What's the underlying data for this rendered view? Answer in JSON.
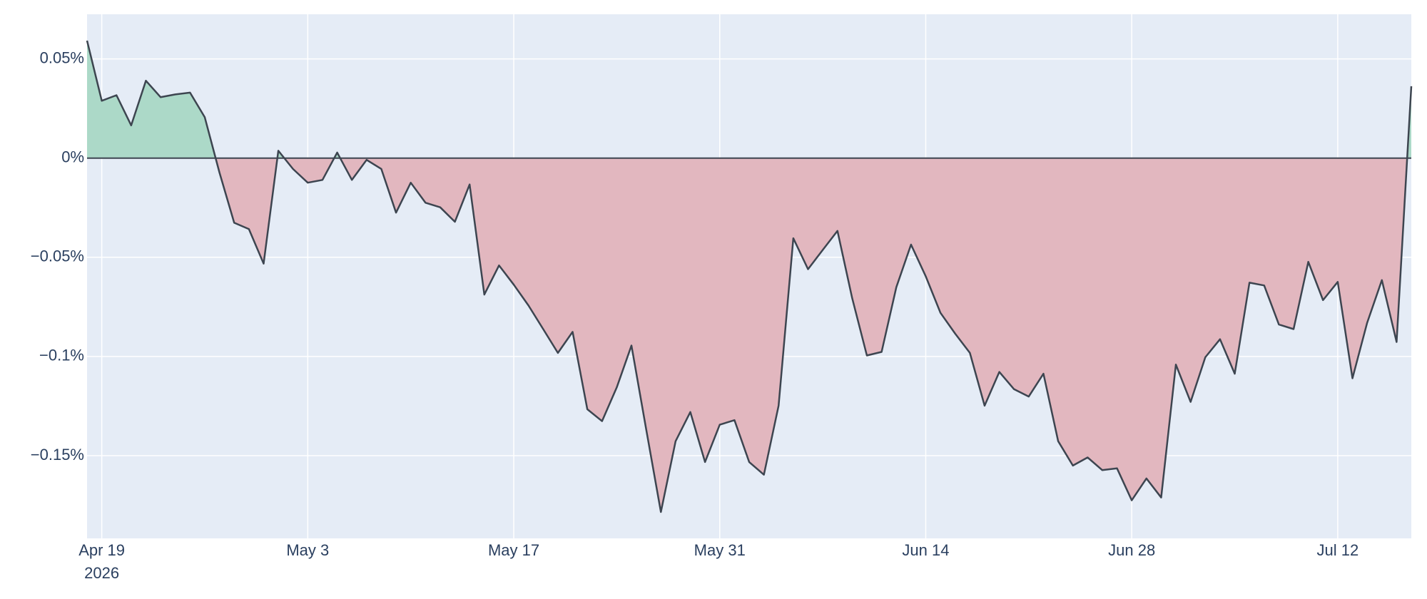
{
  "chart_data": {
    "type": "area",
    "x": [
      "2026-04-18",
      "2026-04-19",
      "2026-04-20",
      "2026-04-21",
      "2026-04-22",
      "2026-04-23",
      "2026-04-24",
      "2026-04-25",
      "2026-04-26",
      "2026-04-27",
      "2026-04-28",
      "2026-04-29",
      "2026-04-30",
      "2026-05-01",
      "2026-05-02",
      "2026-05-03",
      "2026-05-04",
      "2026-05-05",
      "2026-05-06",
      "2026-05-07",
      "2026-05-08",
      "2026-05-09",
      "2026-05-10",
      "2026-05-11",
      "2026-05-12",
      "2026-05-13",
      "2026-05-14",
      "2026-05-15",
      "2026-05-16",
      "2026-05-17",
      "2026-05-18",
      "2026-05-19",
      "2026-05-20",
      "2026-05-21",
      "2026-05-22",
      "2026-05-23",
      "2026-05-24",
      "2026-05-25",
      "2026-05-26",
      "2026-05-27",
      "2026-05-28",
      "2026-05-29",
      "2026-05-30",
      "2026-05-31",
      "2026-06-01",
      "2026-06-02",
      "2026-06-03",
      "2026-06-04",
      "2026-06-05",
      "2026-06-06",
      "2026-06-07",
      "2026-06-08",
      "2026-06-09",
      "2026-06-10",
      "2026-06-11",
      "2026-06-12",
      "2026-06-13",
      "2026-06-14",
      "2026-06-15",
      "2026-06-16",
      "2026-06-17",
      "2026-06-18",
      "2026-06-19",
      "2026-06-20",
      "2026-06-21",
      "2026-06-22",
      "2026-06-23",
      "2026-06-24",
      "2026-06-25",
      "2026-06-26",
      "2026-06-27",
      "2026-06-28",
      "2026-06-29",
      "2026-06-30",
      "2026-07-01",
      "2026-07-02",
      "2026-07-03",
      "2026-07-04",
      "2026-07-05",
      "2026-07-06",
      "2026-07-07",
      "2026-07-08",
      "2026-07-09",
      "2026-07-10",
      "2026-07-11",
      "2026-07-12",
      "2026-07-13",
      "2026-07-14",
      "2026-07-15",
      "2026-07-16",
      "2026-07-17"
    ],
    "values": [
      0.0592,
      0.0289,
      0.0317,
      0.0165,
      0.039,
      0.0307,
      0.0321,
      0.033,
      0.0206,
      -0.0073,
      -0.0326,
      -0.0358,
      -0.0532,
      0.0037,
      -0.0055,
      -0.0124,
      -0.011,
      0.0028,
      -0.011,
      -0.0009,
      -0.0055,
      -0.0275,
      -0.0124,
      -0.0225,
      -0.0248,
      -0.0321,
      -0.0133,
      -0.0688,
      -0.0541,
      -0.0638,
      -0.0743,
      -0.0862,
      -0.0982,
      -0.0876,
      -0.1266,
      -0.1326,
      -0.1156,
      -0.0945,
      -0.1367,
      -0.1784,
      -0.1427,
      -0.128,
      -0.1532,
      -0.1344,
      -0.1321,
      -0.1532,
      -0.1596,
      -0.1248,
      -0.0404,
      -0.056,
      -0.0463,
      -0.0367,
      -0.0706,
      -0.0995,
      -0.0977,
      -0.0651,
      -0.0436,
      -0.0596,
      -0.078,
      -0.0885,
      -0.0982,
      -0.1248,
      -0.1078,
      -0.1165,
      -0.1202,
      -0.1087,
      -0.1427,
      -0.155,
      -0.1509,
      -0.1573,
      -0.1564,
      -0.1725,
      -0.1615,
      -0.1711,
      -0.1041,
      -0.1229,
      -0.1004,
      -0.0913,
      -0.1087,
      -0.0628,
      -0.0642,
      -0.0839,
      -0.0862,
      -0.0523,
      -0.0716,
      -0.0624,
      -0.111,
      -0.083,
      -0.0615,
      -0.0927,
      0.0362
    ],
    "line_color": "#3d4550",
    "positive_fill": "#acd9c8",
    "negative_fill": "#e2b7bf",
    "xlim": [
      "2026-04-18",
      "2026-07-17"
    ],
    "xticks": [
      {
        "value": "2026-04-19",
        "label": "Apr 19"
      },
      {
        "value": "2026-05-03",
        "label": "May 3"
      },
      {
        "value": "2026-05-17",
        "label": "May 17"
      },
      {
        "value": "2026-05-31",
        "label": "May 31"
      },
      {
        "value": "2026-06-14",
        "label": "Jun 14"
      },
      {
        "value": "2026-06-28",
        "label": "Jun 28"
      },
      {
        "value": "2026-07-12",
        "label": "Jul 12"
      }
    ],
    "x_year_label": "2026",
    "ylim": [
      -0.1917,
      0.0725
    ],
    "yticks": [
      {
        "value": 0.05,
        "label": "0.05%"
      },
      {
        "value": 0,
        "label": "0%"
      },
      {
        "value": -0.05,
        "label": "−0.05%"
      },
      {
        "value": -0.1,
        "label": "−0.1%"
      },
      {
        "value": -0.15,
        "label": "−0.15%"
      }
    ],
    "grid": true,
    "zero_line": true
  }
}
